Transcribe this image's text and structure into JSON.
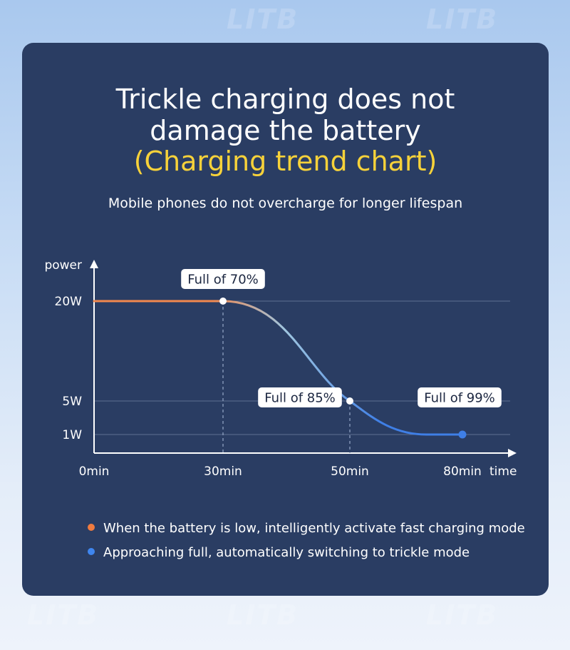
{
  "watermark": "LITB",
  "header": {
    "title_line1": "Trickle charging does not",
    "title_line2": "damage the battery",
    "title_line3": "(Charging trend chart)",
    "subtitle": "Mobile phones do not overcharge for longer lifespan"
  },
  "chart_data": {
    "type": "line",
    "xlabel": "time",
    "ylabel": "power",
    "x_ticks": [
      "0min",
      "30min",
      "50min",
      "80min"
    ],
    "y_ticks": [
      "1W",
      "5W",
      "20W"
    ],
    "series": [
      {
        "points": [
          {
            "x": "0min",
            "y": "20W"
          },
          {
            "x": "30min",
            "y": "20W"
          },
          {
            "x": "50min",
            "y": "5W"
          },
          {
            "x": "80min",
            "y": "1W"
          }
        ]
      }
    ],
    "annotations": [
      {
        "x": "30min",
        "y": "20W",
        "label": "Full of 70%"
      },
      {
        "x": "50min",
        "y": "5W",
        "label": "Full of 85%"
      },
      {
        "x": "80min",
        "y": "1W",
        "label": "Full of 99%"
      }
    ],
    "colors": {
      "fast": "#f2884e",
      "trickle": "#3f7fe6",
      "mid": "#9fc6e0"
    }
  },
  "legend": [
    {
      "text": "When the battery is low, intelligently activate fast charging mode",
      "color": "#f07b3f"
    },
    {
      "text": "Approaching full, automatically switching to trickle mode",
      "color": "#3f86ef"
    }
  ]
}
